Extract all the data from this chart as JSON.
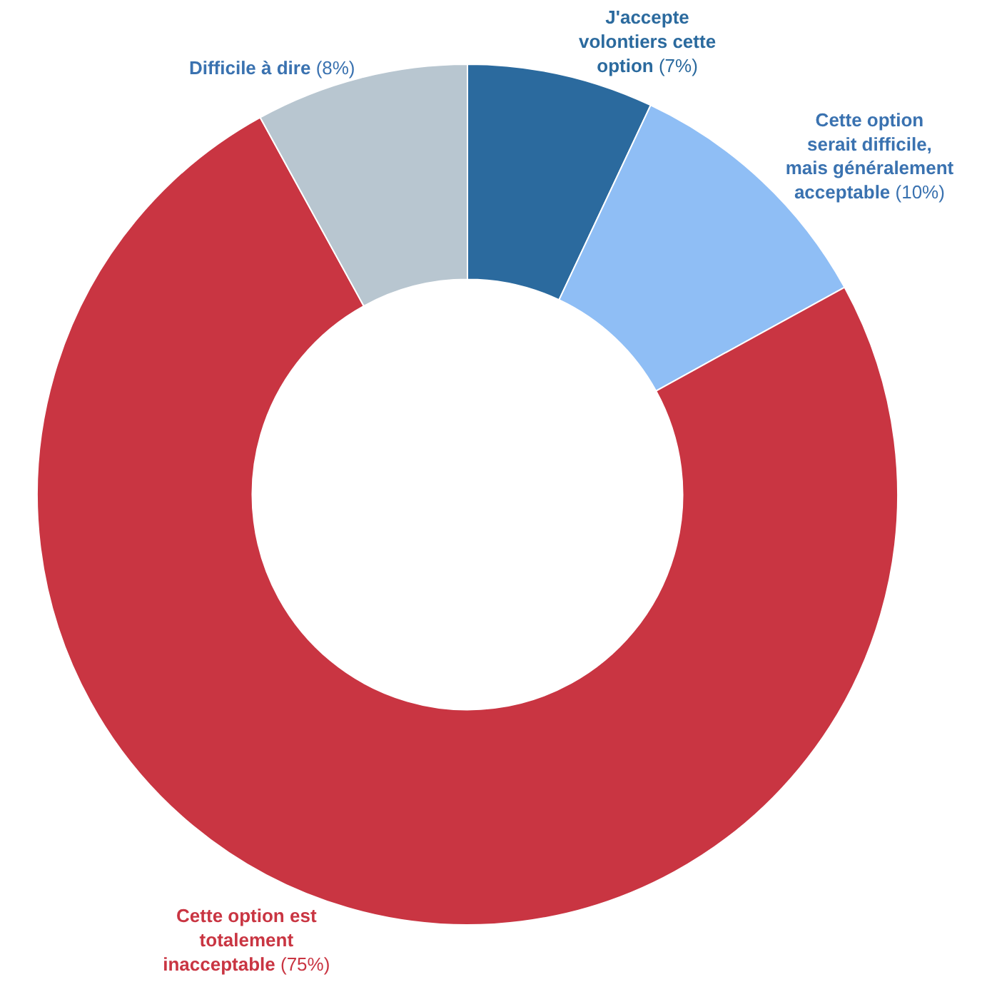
{
  "chart_data": {
    "type": "donut",
    "categories": [
      "J'accepte volontiers cette option",
      "Cette option serait difficile, mais généralement acceptable",
      "Cette option est totalement inacceptable",
      "Difficile à dire"
    ],
    "values": [
      7,
      10,
      75,
      8
    ],
    "value_labels": [
      "(7%)",
      "(10%)",
      "(75%)",
      "(8%)"
    ],
    "colors": [
      "#2b6a9e",
      "#8fbef5",
      "#c93542",
      "#b8c6d0"
    ],
    "legend": false
  }
}
